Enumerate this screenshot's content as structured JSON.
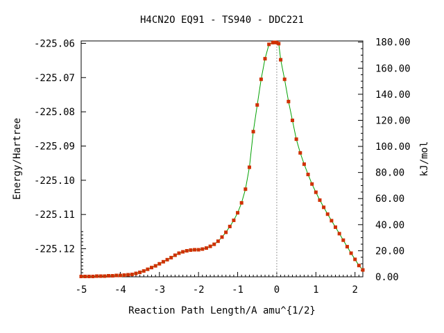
{
  "chart_data": {
    "type": "line",
    "title": "H4CN2O   EQ91 - TS940 - DDC221",
    "xlabel": "Reaction Path Length/A amu^{1/2}",
    "ylabel": "Energy/Hartree",
    "y2label": "kJ/mol",
    "xlim": [
      -5.0,
      2.2
    ],
    "ylim": [
      -225.1282,
      -225.0593
    ],
    "y2lim": [
      0.0,
      180.9
    ],
    "x_ticks": [
      "-5",
      "-4",
      "-3",
      "-2",
      "-1",
      "0",
      "1",
      "2"
    ],
    "y_ticks": [
      "-225.06",
      "-225.07",
      "-225.08",
      "-225.09",
      "-225.10",
      "-225.11",
      "-225.12"
    ],
    "y2_ticks": [
      "180.00",
      "160.00",
      "140.00",
      "120.00",
      "100.00",
      "80.00",
      "60.00",
      "40.00",
      "20.00",
      "0.00"
    ],
    "ts_line_x": 0.0,
    "line_color": "#00a000",
    "marker_color": "#d03000",
    "ts_line_color": "#999999",
    "series": [
      {
        "x": [
          -5.0,
          -4.9,
          -4.8,
          -4.7,
          -4.6,
          -4.5,
          -4.4,
          -4.3,
          -4.2,
          -4.1,
          -4.0,
          -3.9,
          -3.8,
          -3.7,
          -3.6,
          -3.5,
          -3.4,
          -3.3,
          -3.2,
          -3.1,
          -3.0,
          -2.9,
          -2.8,
          -2.7,
          -2.6,
          -2.5,
          -2.4,
          -2.3,
          -2.2,
          -2.1,
          -2.0,
          -1.9,
          -1.8,
          -1.7,
          -1.6,
          -1.5,
          -1.4,
          -1.3,
          -1.2,
          -1.1,
          -1.0,
          -0.9,
          -0.8,
          -0.7,
          -0.6,
          -0.5,
          -0.4,
          -0.3,
          -0.2,
          -0.1,
          -0.05,
          0.0,
          0.05,
          0.1,
          0.2,
          0.3,
          0.4,
          0.5,
          0.6,
          0.7,
          0.8,
          0.9,
          1.0,
          1.1,
          1.2,
          1.3,
          1.4,
          1.5,
          1.6,
          1.7,
          1.8,
          1.9,
          2.0,
          2.1,
          2.2
        ],
        "y": [
          -225.1281,
          -225.1281,
          -225.1281,
          -225.1281,
          -225.128,
          -225.128,
          -225.128,
          -225.1279,
          -225.1279,
          -225.1278,
          -225.1278,
          -225.1277,
          -225.1276,
          -225.1275,
          -225.1272,
          -225.1269,
          -225.1265,
          -225.126,
          -225.1255,
          -225.125,
          -225.1244,
          -225.1238,
          -225.1232,
          -225.1226,
          -225.1219,
          -225.1213,
          -225.1209,
          -225.1206,
          -225.1204,
          -225.1203,
          -225.1203,
          -225.1201,
          -225.1198,
          -225.1193,
          -225.1187,
          -225.1178,
          -225.1166,
          -225.1152,
          -225.1135,
          -225.1117,
          -225.1095,
          -225.1066,
          -225.1026,
          -225.0962,
          -225.0858,
          -225.078,
          -225.0705,
          -225.0645,
          -225.0603,
          -225.0598,
          -225.0597,
          -225.0598,
          -225.0601,
          -225.0648,
          -225.0705,
          -225.077,
          -225.0825,
          -225.088,
          -225.092,
          -225.0953,
          -225.0983,
          -225.1011,
          -225.1035,
          -225.1058,
          -225.1079,
          -225.1099,
          -225.1118,
          -225.1137,
          -225.1156,
          -225.1175,
          -225.1194,
          -225.1213,
          -225.1231,
          -225.1249,
          -225.1262
        ]
      }
    ]
  }
}
